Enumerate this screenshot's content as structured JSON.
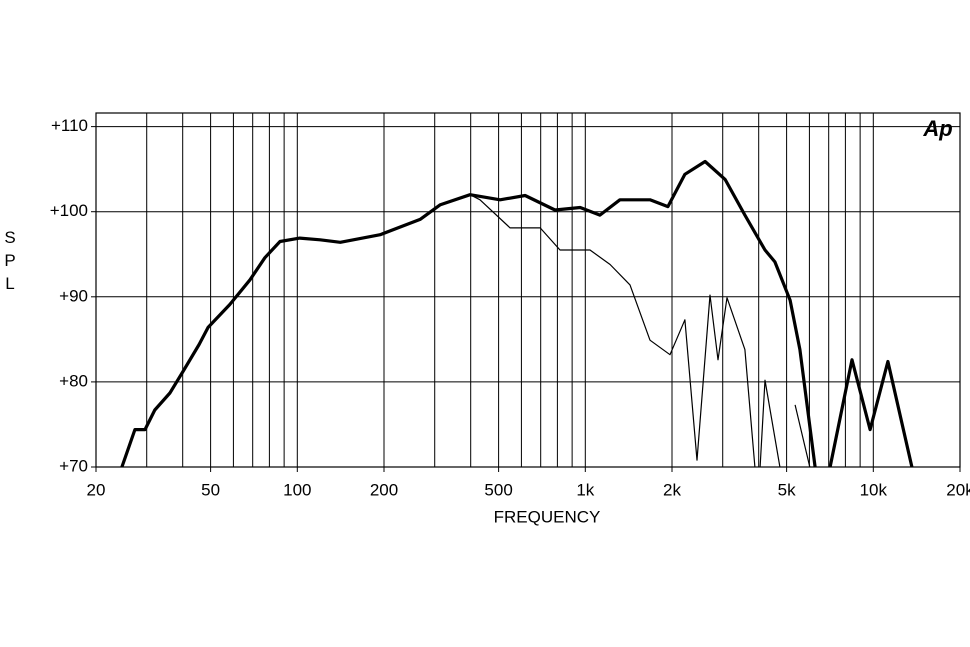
{
  "chart_data": {
    "type": "line",
    "ylabel": "S P L",
    "xlabel": "FREQUENCY",
    "logo": "Ap",
    "xscale": "log",
    "xlim": [
      20,
      20000
    ],
    "ylim": [
      70,
      111.6
    ],
    "xticks": [
      20,
      50,
      100,
      200,
      500,
      {
        "value": 1000,
        "label": "1k"
      },
      {
        "value": 2000,
        "label": "2k"
      },
      {
        "value": 5000,
        "label": "5k"
      },
      {
        "value": 10000,
        "label": "10k"
      },
      {
        "value": 20000,
        "label": "20k"
      }
    ],
    "xgrid": [
      30,
      40,
      50,
      60,
      70,
      80,
      90,
      100,
      200,
      300,
      400,
      500,
      600,
      700,
      800,
      900,
      1000,
      2000,
      3000,
      4000,
      5000,
      6000,
      7000,
      8000,
      9000,
      10000
    ],
    "yticks": [
      {
        "value": 70,
        "label": "+70"
      },
      {
        "value": 80,
        "label": "+80"
      },
      {
        "value": 90,
        "label": "+90"
      },
      {
        "value": 100,
        "label": "+100"
      },
      {
        "value": 110,
        "label": "+110"
      }
    ],
    "grid": true,
    "series": [
      {
        "color": "#000000",
        "width": 3.2,
        "x": [
          24.6,
          27.3,
          29.6,
          32.0,
          36.1,
          40.4,
          45.6,
          49.0,
          58.3,
          68.5,
          77.2,
          87.1,
          102,
          120,
          141,
          194,
          267,
          313,
          398,
          506,
          618,
          785,
          960,
          1124,
          1319,
          1678,
          1936,
          2218,
          2606,
          3057,
          3583,
          4206,
          4555,
          5140,
          5560,
          6280,
          null,
          7080,
          8436,
          9745,
          11240,
          13620
        ],
        "values": [
          70,
          74.4,
          74.4,
          76.7,
          78.7,
          81.4,
          84.4,
          86.4,
          89.1,
          92.0,
          94.6,
          96.5,
          96.9,
          96.7,
          96.4,
          97.3,
          99.1,
          100.8,
          102.0,
          101.4,
          101.9,
          100.2,
          100.5,
          99.6,
          101.4,
          101.4,
          100.6,
          104.4,
          105.9,
          103.8,
          99.6,
          95.5,
          94.1,
          89.6,
          83.8,
          70,
          null,
          70,
          82.6,
          74.4,
          82.4,
          70
        ]
      },
      {
        "color": "#000000",
        "width": 1.2,
        "x": [
          398,
          431,
          548,
          697,
          817,
          1038,
          1219,
          1430,
          1678,
          1969,
          2218,
          2443,
          2710,
          2890,
          3105,
          3583,
          3880,
          null,
          4046,
          4206,
          4740,
          null,
          5350,
          6020
        ],
        "values": [
          102.0,
          101.4,
          98.1,
          98.1,
          95.5,
          95.5,
          93.8,
          91.4,
          84.9,
          83.2,
          87.3,
          70.8,
          90.2,
          82.6,
          89.9,
          83.8,
          70,
          null,
          70,
          80.2,
          70,
          null,
          77.3,
          70
        ]
      }
    ]
  }
}
